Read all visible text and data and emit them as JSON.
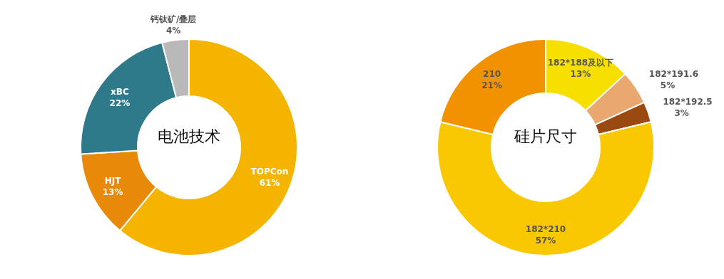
{
  "chart_data": [
    {
      "type": "donut",
      "title": "电池技术",
      "categories": [
        "TOPCon",
        "HJT",
        "xBC",
        "钙钛矿/叠层"
      ],
      "values": [
        61,
        13,
        22,
        4
      ],
      "colors": [
        "#f5b400",
        "#e8890a",
        "#2f7a8a",
        "#b9b9b9"
      ],
      "value_labels": [
        "61%",
        "13%",
        "22%",
        "4%"
      ]
    },
    {
      "type": "donut",
      "title": "硅片尺寸",
      "categories": [
        "182*188及以下",
        "182*191.6",
        "182*192.5",
        "182*210",
        "210"
      ],
      "values": [
        13,
        5,
        3,
        57,
        21
      ],
      "colors": [
        "#f7e000",
        "#e8a870",
        "#9a4a10",
        "#f9c800",
        "#f39200"
      ],
      "value_labels": [
        "13%",
        "5%",
        "3%",
        "57%",
        "21%"
      ]
    }
  ]
}
